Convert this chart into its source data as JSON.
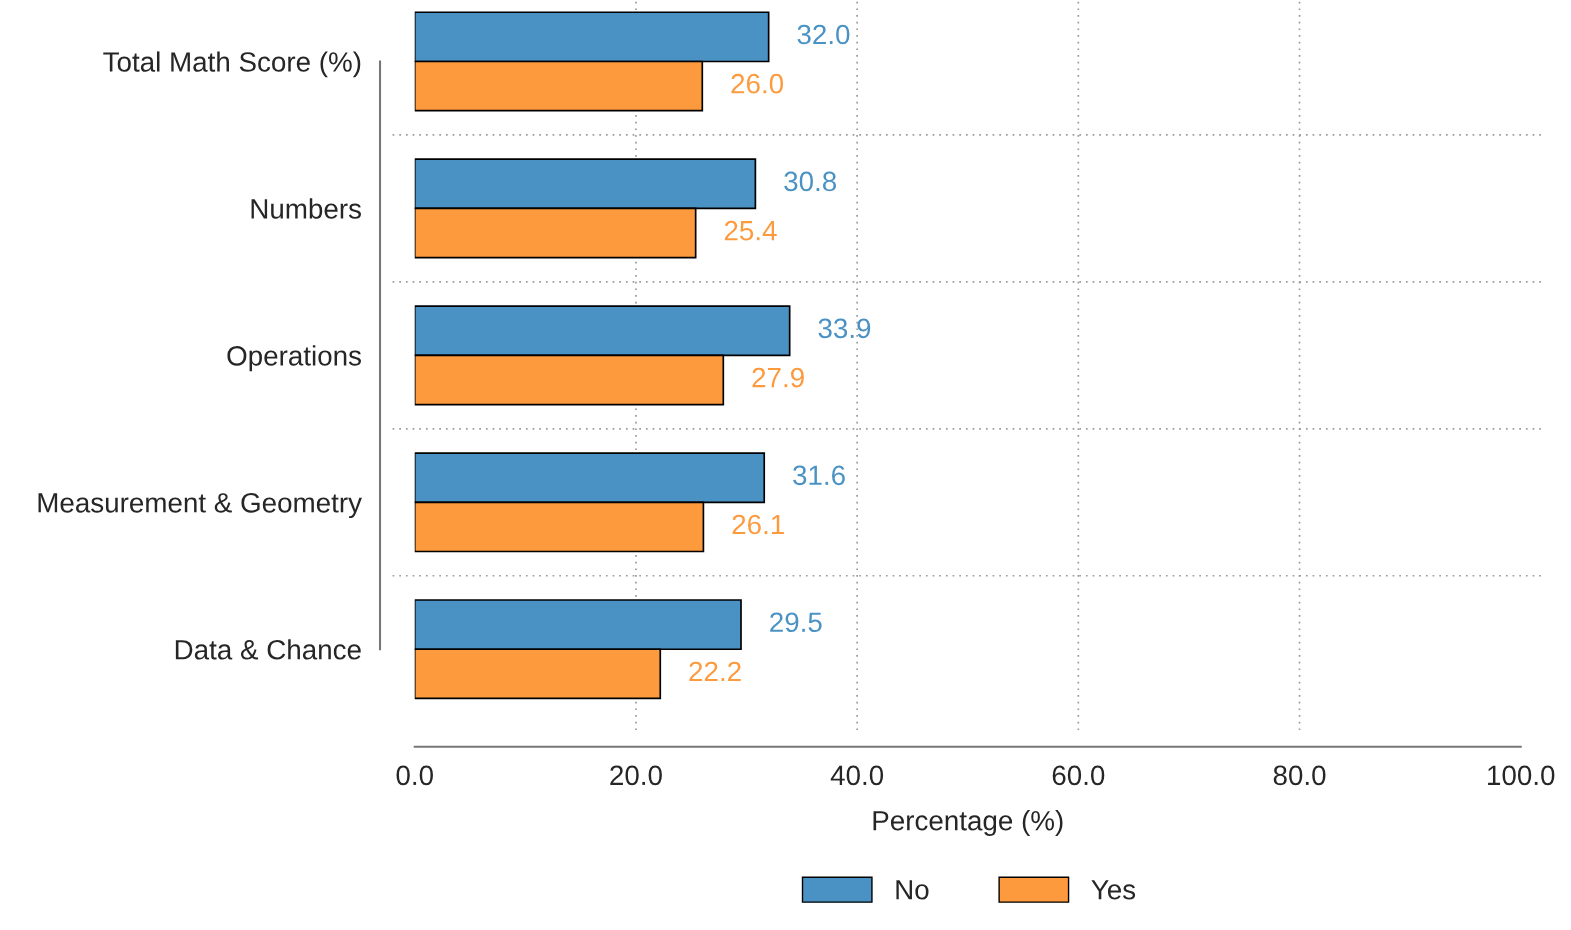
{
  "chart_data": {
    "type": "bar",
    "orientation": "horizontal",
    "xlabel": "Percentage (%)",
    "categories": [
      "Total Math Score (%)",
      "Numbers",
      "Operations",
      "Measurement & Geometry",
      "Data & Chance"
    ],
    "series": [
      {
        "name": "No",
        "color": "#4a92c4",
        "values": [
          32.0,
          30.8,
          33.9,
          31.6,
          29.5
        ],
        "value_labels": [
          "32.0",
          "30.8",
          "33.9",
          "31.6",
          "29.5"
        ]
      },
      {
        "name": "Yes",
        "color": "#fd9a3e",
        "values": [
          26.0,
          25.4,
          27.9,
          26.1,
          22.2
        ],
        "value_labels": [
          "26.0",
          "25.4",
          "27.9",
          "26.1",
          "22.2"
        ]
      }
    ],
    "xlim": [
      0,
      100
    ],
    "xticks": [
      {
        "value": 0,
        "label": "0.0"
      },
      {
        "value": 20,
        "label": "20.0"
      },
      {
        "value": 40,
        "label": "40.0"
      },
      {
        "value": 60,
        "label": "60.0"
      },
      {
        "value": 80,
        "label": "80.0"
      },
      {
        "value": 100,
        "label": "100.0"
      }
    ],
    "grid": true,
    "legend": "bottom"
  }
}
